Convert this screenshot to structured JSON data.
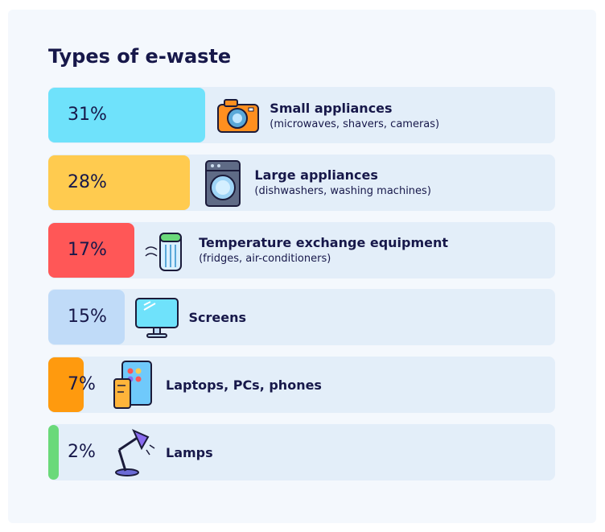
{
  "chart_data": {
    "type": "bar",
    "title": "Types of e-waste",
    "categories": [
      "Small appliances",
      "Large appliances",
      "Temperature exchange equipment",
      "Screens",
      "Laptops, PCs, phones",
      "Lamps"
    ],
    "subtitles": [
      "(microwaves, shavers, cameras)",
      "(dishwashers, washing machines)",
      "(fridges, air-conditioners)",
      "",
      "",
      ""
    ],
    "values": [
      31,
      28,
      17,
      15,
      7,
      2
    ],
    "value_labels": [
      "31%",
      "28%",
      "17%",
      "15%",
      "7%",
      "2%"
    ],
    "colors": [
      "#6fe2fb",
      "#ffcb4f",
      "#ff5757",
      "#c0dbf8",
      "#ff9a0e",
      "#6ad97a"
    ],
    "icons": [
      "camera-icon",
      "washing-machine-icon",
      "air-conditioner-icon",
      "monitor-icon",
      "phone-tablet-icon",
      "desk-lamp-icon"
    ],
    "xlim": [
      0,
      100
    ],
    "orientation": "horizontal"
  }
}
